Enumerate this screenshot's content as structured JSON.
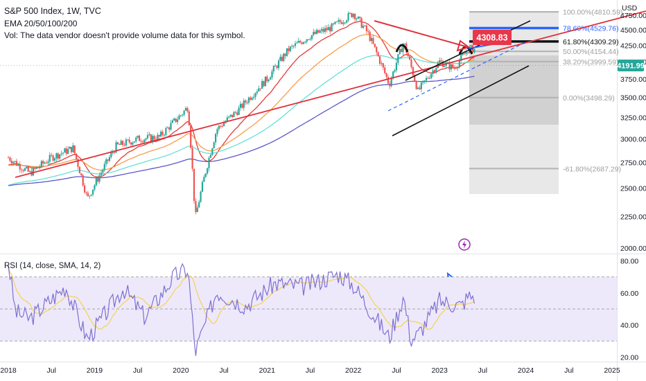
{
  "header": {
    "title": "S&P 500 Index, 1W, TVC",
    "indicators": "EMA 20/50/100/200",
    "volume_note": "Vol: The data vendor doesn't provide volume data for this symbol.",
    "currency": "USD"
  },
  "rsi_legend": "RSI (14, close, SMA, 14, 2)",
  "badges": {
    "target_price": "4308.83",
    "last_price": "4191.99"
  },
  "colors": {
    "candle_up": "#26a69a",
    "candle_down": "#ef5350",
    "ema20": "#e53935",
    "ema50": "#f59f4a",
    "ema100": "#64e0d8",
    "ema200": "#5b57c9",
    "trendline": "#e0303b",
    "channel": "#111111",
    "rsi_line": "#7e6fd0",
    "rsi_sma": "#f4d35e",
    "rsi_band": "#ede9fb",
    "arrow_blue": "#2962ff",
    "badge_red": "#e8374a",
    "fib_grey": "#bdbdbd"
  },
  "chart_data": [
    {
      "type": "line",
      "title": "S&P 500 Index, 1W, TVC",
      "log_scale": true,
      "x_ticks": [
        "2018",
        "Jul",
        "2019",
        "Jul",
        "2020",
        "Jul",
        "2021",
        "Jul",
        "2022",
        "Jul",
        "2023",
        "Jul",
        "2024",
        "Jul",
        "2025"
      ],
      "y_ticks": [
        2000,
        2250,
        2500,
        2750,
        3000,
        3250,
        3500,
        3750,
        4000,
        4250,
        4500,
        4750
      ],
      "ylim": [
        1990,
        4900
      ],
      "series": [
        {
          "name": "",
          "x": [
            "2018-01",
            "2018-04",
            "2018-07",
            "2018-10",
            "2018-12",
            "2019-04",
            "2019-07",
            "2019-10",
            "2020-01",
            "2020-02",
            "2020-03",
            "2020-06",
            "2020-09",
            "2021-01",
            "2021-04",
            "2021-07",
            "2021-10",
            "2022-01",
            "2022-03",
            "2022-06",
            "2022-08",
            "2022-10",
            "2023-01",
            "2023-03",
            "2023-05"
          ],
          "y": [
            2800,
            2640,
            2800,
            2900,
            2400,
            2920,
            3000,
            3020,
            3280,
            3380,
            2230,
            3110,
            3340,
            3750,
            4180,
            4400,
            4540,
            4790,
            4450,
            3670,
            4300,
            3580,
            4000,
            3900,
            4192
          ]
        }
      ],
      "fibonacci": [
        {
          "level": "100.00%",
          "price": 4810.59,
          "label": "100.00%(4810.59)"
        },
        {
          "level": "78.60%",
          "price": 4529.76,
          "label": "78.60%(4529.76)"
        },
        {
          "level": "61.80%",
          "price": 4309.29,
          "label": "61.80%(4309.29)"
        },
        {
          "level": "50.00%",
          "price": 4154.44,
          "label": "50.00%(4154.44)"
        },
        {
          "level": "38.20%",
          "price": 3999.59,
          "label": "38.20%(3999.59)"
        },
        {
          "level": "0.00%",
          "price": 3498.29,
          "label": "0.00%(3498.29)"
        },
        {
          "level": "-61.80%",
          "price": 2687.29,
          "label": "-61.80%(2687.29)"
        }
      ]
    },
    {
      "type": "line",
      "title": "RSI (14, close, SMA, 14, 2)",
      "y_ticks": [
        20,
        40,
        60,
        80
      ],
      "ylim": [
        18,
        82
      ],
      "bands": [
        30,
        50,
        70
      ],
      "series": [
        {
          "name": "",
          "x": [
            "2018-01",
            "2018-02",
            "2018-04",
            "2018-09",
            "2018-12",
            "2019-05",
            "2019-08",
            "2019-12",
            "2020-02",
            "2020-03",
            "2020-06",
            "2020-10",
            "2021-02",
            "2021-06",
            "2021-11",
            "2022-01",
            "2022-06",
            "2022-08",
            "2022-09",
            "2022-10",
            "2023-01",
            "2023-04",
            "2023-05"
          ],
          "y": [
            79,
            48,
            44,
            64,
            31,
            63,
            45,
            70,
            75,
            23,
            61,
            52,
            66,
            64,
            72,
            65,
            32,
            58,
            31,
            34,
            55,
            52,
            58
          ]
        }
      ]
    }
  ]
}
